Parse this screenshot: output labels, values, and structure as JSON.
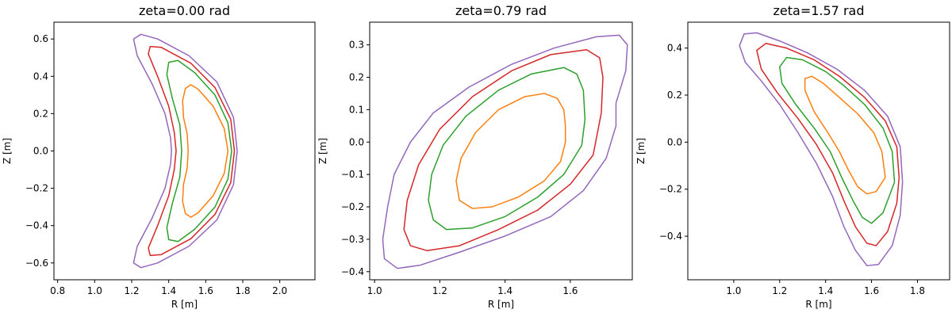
{
  "colors": {
    "flux_surfaces": [
      "#ff7f0e",
      "#2ca02c",
      "#d62728",
      "#9467bd"
    ],
    "frame": "#000000",
    "background": "#ffffff"
  },
  "chart_data": [
    {
      "type": "line",
      "title": "zeta=0.00 rad",
      "xlabel": "R [m]",
      "ylabel": "Z [m]",
      "xlim": [
        0.78,
        2.19
      ],
      "ylim": [
        -0.69,
        0.69
      ],
      "xticks": [
        0.8,
        1.0,
        1.2,
        1.4,
        1.6,
        1.8,
        2.0
      ],
      "xtick_labels": [
        "0.8",
        "1.0",
        "1.2",
        "1.4",
        "1.6",
        "1.8",
        "2.0"
      ],
      "yticks": [
        -0.6,
        -0.4,
        -0.2,
        0.0,
        0.2,
        0.4,
        0.6
      ],
      "ytick_labels": [
        "−0.6",
        "−0.4",
        "−0.2",
        "0.0",
        "0.2",
        "0.4",
        "0.6"
      ],
      "grid": false,
      "series": [
        {
          "points": [
            [
              1.72,
              0.0
            ],
            [
              1.7,
              0.12
            ],
            [
              1.64,
              0.24
            ],
            [
              1.56,
              0.33
            ],
            [
              1.52,
              0.355
            ],
            [
              1.49,
              0.335
            ],
            [
              1.475,
              0.27
            ],
            [
              1.48,
              0.18
            ],
            [
              1.5,
              0.09
            ],
            [
              1.505,
              0.0
            ],
            [
              1.5,
              -0.09
            ],
            [
              1.48,
              -0.18
            ],
            [
              1.475,
              -0.27
            ],
            [
              1.49,
              -0.335
            ],
            [
              1.52,
              -0.355
            ],
            [
              1.56,
              -0.33
            ],
            [
              1.64,
              -0.24
            ],
            [
              1.7,
              -0.12
            ],
            [
              1.72,
              0.0
            ]
          ]
        },
        {
          "points": [
            [
              1.74,
              0.0
            ],
            [
              1.72,
              0.15
            ],
            [
              1.65,
              0.3
            ],
            [
              1.54,
              0.42
            ],
            [
              1.45,
              0.485
            ],
            [
              1.4,
              0.475
            ],
            [
              1.39,
              0.41
            ],
            [
              1.42,
              0.28
            ],
            [
              1.46,
              0.14
            ],
            [
              1.47,
              0.0
            ],
            [
              1.46,
              -0.14
            ],
            [
              1.42,
              -0.28
            ],
            [
              1.39,
              -0.41
            ],
            [
              1.4,
              -0.475
            ],
            [
              1.45,
              -0.485
            ],
            [
              1.54,
              -0.42
            ],
            [
              1.65,
              -0.3
            ],
            [
              1.72,
              -0.15
            ],
            [
              1.74,
              0.0
            ]
          ]
        },
        {
          "points": [
            [
              1.755,
              0.0
            ],
            [
              1.735,
              0.17
            ],
            [
              1.65,
              0.34
            ],
            [
              1.52,
              0.47
            ],
            [
              1.36,
              0.555
            ],
            [
              1.3,
              0.56
            ],
            [
              1.29,
              0.52
            ],
            [
              1.34,
              0.4
            ],
            [
              1.4,
              0.24
            ],
            [
              1.43,
              0.1
            ],
            [
              1.44,
              0.0
            ],
            [
              1.43,
              -0.1
            ],
            [
              1.4,
              -0.24
            ],
            [
              1.34,
              -0.4
            ],
            [
              1.29,
              -0.52
            ],
            [
              1.3,
              -0.56
            ],
            [
              1.36,
              -0.555
            ],
            [
              1.52,
              -0.47
            ],
            [
              1.65,
              -0.34
            ],
            [
              1.735,
              -0.17
            ],
            [
              1.755,
              0.0
            ]
          ]
        },
        {
          "points": [
            [
              1.77,
              0.0
            ],
            [
              1.75,
              0.18
            ],
            [
              1.66,
              0.37
            ],
            [
              1.51,
              0.51
            ],
            [
              1.34,
              0.6
            ],
            [
              1.25,
              0.625
            ],
            [
              1.21,
              0.6
            ],
            [
              1.23,
              0.51
            ],
            [
              1.31,
              0.36
            ],
            [
              1.38,
              0.2
            ],
            [
              1.41,
              0.07
            ],
            [
              1.415,
              0.0
            ],
            [
              1.41,
              -0.07
            ],
            [
              1.38,
              -0.2
            ],
            [
              1.31,
              -0.36
            ],
            [
              1.23,
              -0.51
            ],
            [
              1.21,
              -0.6
            ],
            [
              1.25,
              -0.625
            ],
            [
              1.34,
              -0.6
            ],
            [
              1.51,
              -0.51
            ],
            [
              1.66,
              -0.37
            ],
            [
              1.75,
              -0.18
            ],
            [
              1.77,
              0.0
            ]
          ]
        }
      ]
    },
    {
      "type": "line",
      "title": "zeta=0.79 rad",
      "xlabel": "R [m]",
      "ylabel": "Z [m]",
      "xlim": [
        0.985,
        1.79
      ],
      "ylim": [
        -0.425,
        0.37
      ],
      "xticks": [
        1.0,
        1.2,
        1.4,
        1.6
      ],
      "xtick_labels": [
        "1.0",
        "1.2",
        "1.4",
        "1.6"
      ],
      "yticks": [
        -0.4,
        -0.3,
        -0.2,
        -0.1,
        0.0,
        0.1,
        0.2,
        0.3
      ],
      "ytick_labels": [
        "−0.4",
        "−0.3",
        "−0.2",
        "−0.1",
        "0.0",
        "0.1",
        "0.2",
        "0.3"
      ],
      "grid": false,
      "series": [
        {
          "points": [
            [
              1.585,
              0.05
            ],
            [
              1.58,
              0.1
            ],
            [
              1.56,
              0.135
            ],
            [
              1.52,
              0.15
            ],
            [
              1.46,
              0.14
            ],
            [
              1.38,
              0.1
            ],
            [
              1.31,
              0.03
            ],
            [
              1.265,
              -0.05
            ],
            [
              1.25,
              -0.12
            ],
            [
              1.26,
              -0.18
            ],
            [
              1.3,
              -0.205
            ],
            [
              1.36,
              -0.2
            ],
            [
              1.44,
              -0.17
            ],
            [
              1.52,
              -0.12
            ],
            [
              1.57,
              -0.06
            ],
            [
              1.585,
              0.0
            ],
            [
              1.585,
              0.05
            ]
          ]
        },
        {
          "points": [
            [
              1.645,
              0.07
            ],
            [
              1.64,
              0.16
            ],
            [
              1.62,
              0.21
            ],
            [
              1.58,
              0.23
            ],
            [
              1.48,
              0.21
            ],
            [
              1.38,
              0.16
            ],
            [
              1.28,
              0.08
            ],
            [
              1.21,
              -0.01
            ],
            [
              1.175,
              -0.1
            ],
            [
              1.165,
              -0.18
            ],
            [
              1.18,
              -0.24
            ],
            [
              1.22,
              -0.27
            ],
            [
              1.3,
              -0.265
            ],
            [
              1.4,
              -0.23
            ],
            [
              1.5,
              -0.17
            ],
            [
              1.58,
              -0.1
            ],
            [
              1.635,
              -0.01
            ],
            [
              1.645,
              0.07
            ]
          ]
        },
        {
          "points": [
            [
              1.695,
              0.09
            ],
            [
              1.7,
              0.2
            ],
            [
              1.69,
              0.26
            ],
            [
              1.65,
              0.285
            ],
            [
              1.54,
              0.27
            ],
            [
              1.42,
              0.22
            ],
            [
              1.3,
              0.14
            ],
            [
              1.2,
              0.04
            ],
            [
              1.135,
              -0.07
            ],
            [
              1.1,
              -0.18
            ],
            [
              1.09,
              -0.27
            ],
            [
              1.11,
              -0.32
            ],
            [
              1.16,
              -0.335
            ],
            [
              1.26,
              -0.32
            ],
            [
              1.38,
              -0.27
            ],
            [
              1.5,
              -0.21
            ],
            [
              1.6,
              -0.13
            ],
            [
              1.67,
              -0.04
            ],
            [
              1.695,
              0.09
            ]
          ]
        },
        {
          "points": [
            [
              1.74,
              0.12
            ],
            [
              1.77,
              0.22
            ],
            [
              1.775,
              0.3
            ],
            [
              1.75,
              0.33
            ],
            [
              1.68,
              0.325
            ],
            [
              1.55,
              0.29
            ],
            [
              1.42,
              0.24
            ],
            [
              1.29,
              0.17
            ],
            [
              1.18,
              0.09
            ],
            [
              1.11,
              0.0
            ],
            [
              1.06,
              -0.1
            ],
            [
              1.04,
              -0.2
            ],
            [
              1.025,
              -0.3
            ],
            [
              1.03,
              -0.36
            ],
            [
              1.07,
              -0.39
            ],
            [
              1.14,
              -0.38
            ],
            [
              1.26,
              -0.34
            ],
            [
              1.4,
              -0.29
            ],
            [
              1.54,
              -0.23
            ],
            [
              1.64,
              -0.15
            ],
            [
              1.71,
              -0.05
            ],
            [
              1.74,
              0.05
            ],
            [
              1.74,
              0.12
            ]
          ]
        }
      ]
    },
    {
      "type": "line",
      "title": "zeta=1.57 rad",
      "xlabel": "R [m]",
      "ylabel": "Z [m]",
      "xlim": [
        0.8,
        1.94
      ],
      "ylim": [
        -0.585,
        0.51
      ],
      "xticks": [
        1.0,
        1.2,
        1.4,
        1.6,
        1.8
      ],
      "xtick_labels": [
        "1.0",
        "1.2",
        "1.4",
        "1.6",
        "1.8"
      ],
      "yticks": [
        -0.4,
        -0.2,
        0.0,
        0.2,
        0.4
      ],
      "ytick_labels": [
        "−0.4",
        "−0.2",
        "0.0",
        "0.2",
        "0.4"
      ],
      "grid": false,
      "series": [
        {
          "points": [
            [
              1.66,
              -0.15
            ],
            [
              1.645,
              -0.04
            ],
            [
              1.61,
              0.04
            ],
            [
              1.54,
              0.12
            ],
            [
              1.46,
              0.19
            ],
            [
              1.39,
              0.25
            ],
            [
              1.34,
              0.28
            ],
            [
              1.31,
              0.27
            ],
            [
              1.31,
              0.22
            ],
            [
              1.35,
              0.13
            ],
            [
              1.41,
              0.04
            ],
            [
              1.46,
              -0.04
            ],
            [
              1.5,
              -0.12
            ],
            [
              1.54,
              -0.19
            ],
            [
              1.58,
              -0.22
            ],
            [
              1.62,
              -0.21
            ],
            [
              1.66,
              -0.15
            ]
          ]
        },
        {
          "points": [
            [
              1.7,
              -0.17
            ],
            [
              1.69,
              -0.04
            ],
            [
              1.65,
              0.06
            ],
            [
              1.57,
              0.16
            ],
            [
              1.48,
              0.24
            ],
            [
              1.4,
              0.3
            ],
            [
              1.3,
              0.35
            ],
            [
              1.23,
              0.36
            ],
            [
              1.2,
              0.32
            ],
            [
              1.21,
              0.25
            ],
            [
              1.27,
              0.16
            ],
            [
              1.35,
              0.06
            ],
            [
              1.42,
              -0.04
            ],
            [
              1.47,
              -0.15
            ],
            [
              1.52,
              -0.25
            ],
            [
              1.56,
              -0.32
            ],
            [
              1.6,
              -0.345
            ],
            [
              1.65,
              -0.3
            ],
            [
              1.7,
              -0.17
            ]
          ]
        },
        {
          "points": [
            [
              1.72,
              -0.15
            ],
            [
              1.71,
              -0.02
            ],
            [
              1.66,
              0.09
            ],
            [
              1.57,
              0.19
            ],
            [
              1.46,
              0.28
            ],
            [
              1.35,
              0.35
            ],
            [
              1.23,
              0.4
            ],
            [
              1.14,
              0.42
            ],
            [
              1.1,
              0.39
            ],
            [
              1.12,
              0.31
            ],
            [
              1.19,
              0.21
            ],
            [
              1.28,
              0.1
            ],
            [
              1.36,
              -0.01
            ],
            [
              1.43,
              -0.13
            ],
            [
              1.48,
              -0.25
            ],
            [
              1.53,
              -0.36
            ],
            [
              1.58,
              -0.43
            ],
            [
              1.62,
              -0.44
            ],
            [
              1.67,
              -0.38
            ],
            [
              1.71,
              -0.26
            ],
            [
              1.72,
              -0.15
            ]
          ]
        },
        {
          "points": [
            [
              1.735,
              -0.17
            ],
            [
              1.725,
              -0.02
            ],
            [
              1.67,
              0.11
            ],
            [
              1.57,
              0.22
            ],
            [
              1.45,
              0.31
            ],
            [
              1.32,
              0.38
            ],
            [
              1.2,
              0.43
            ],
            [
              1.1,
              0.465
            ],
            [
              1.045,
              0.46
            ],
            [
              1.025,
              0.41
            ],
            [
              1.05,
              0.34
            ],
            [
              1.12,
              0.26
            ],
            [
              1.2,
              0.16
            ],
            [
              1.28,
              0.04
            ],
            [
              1.36,
              -0.09
            ],
            [
              1.43,
              -0.23
            ],
            [
              1.48,
              -0.36
            ],
            [
              1.53,
              -0.46
            ],
            [
              1.58,
              -0.525
            ],
            [
              1.63,
              -0.52
            ],
            [
              1.69,
              -0.44
            ],
            [
              1.725,
              -0.31
            ],
            [
              1.735,
              -0.17
            ]
          ]
        }
      ]
    }
  ]
}
